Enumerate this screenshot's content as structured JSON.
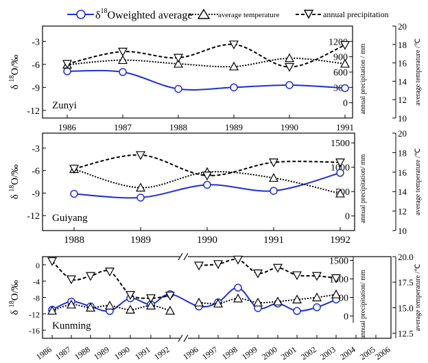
{
  "legend": {
    "delta_label": "δ",
    "delta_sup": "18",
    "delta_rest": "Oweighted average",
    "temp_label": "average temperature",
    "precip_label": "annual precipitation"
  },
  "colors": {
    "delta": "#1f2fd1",
    "temp": "#000000",
    "precip": "#000000"
  },
  "chart_data": [
    {
      "type": "line",
      "station": "Zunyi",
      "x": [
        1986,
        1987,
        1988,
        1989,
        1990,
        1991
      ],
      "x_ticks": [
        "1986",
        "1987",
        "1988",
        "1989",
        "1990",
        "1991"
      ],
      "ylabel_left": "δ 18O/‰",
      "ylabel_right_inner": "annual precipitation / mm",
      "ylabel_right_outer": "average temperature /℃",
      "ylim_left": [
        -13,
        -1
      ],
      "yticks_left": [
        "-3",
        "-6",
        "-9",
        "-12"
      ],
      "ylim_precip": [
        -300,
        1500
      ],
      "yticks_precip": [
        "1200",
        "900",
        "600",
        "300",
        "0"
      ],
      "ylim_temp": [
        10,
        20
      ],
      "yticks_temp": [
        "20",
        "18",
        "16",
        "14",
        "12",
        "10"
      ],
      "series": [
        {
          "name": "δ18O weighted average",
          "axis": "left",
          "values": [
            -6.9,
            -7.0,
            -9.2,
            -9.0,
            -8.7,
            -9.1
          ]
        },
        {
          "name": "average temperature",
          "axis": "temp",
          "values": [
            15.8,
            16.3,
            15.9,
            15.6,
            16.5,
            15.9
          ]
        },
        {
          "name": "annual precipitation",
          "axis": "precip",
          "values": [
            760,
            1000,
            880,
            1140,
            700,
            1130
          ]
        }
      ]
    },
    {
      "type": "line",
      "station": "Guiyang",
      "x": [
        1988,
        1989,
        1990,
        1991,
        1992
      ],
      "x_ticks": [
        "1988",
        "1989",
        "1990",
        "1991",
        "1992"
      ],
      "ylabel_left": "δ 18O/‰",
      "ylabel_right_inner": "annual precipitation/ mm",
      "ylabel_right_outer": "average temperature /℃",
      "ylim_left": [
        -14,
        -1
      ],
      "yticks_left": [
        "-3",
        "-6",
        "-9",
        "-12"
      ],
      "ylim_precip": [
        -300,
        1700
      ],
      "yticks_precip": [
        "1500",
        "1000",
        "500",
        "0"
      ],
      "ylim_temp": [
        10,
        20
      ],
      "yticks_temp": [
        "20",
        "18",
        "16",
        "14",
        "12",
        "10"
      ],
      "series": [
        {
          "name": "δ18O weighted average",
          "axis": "left",
          "values": [
            -9.1,
            -9.6,
            -7.9,
            -8.7,
            -6.3
          ]
        },
        {
          "name": "average temperature",
          "axis": "temp",
          "values": [
            16.3,
            14.4,
            16.0,
            15.4,
            13.8
          ]
        },
        {
          "name": "annual precipitation",
          "axis": "precip",
          "values": [
            970,
            1250,
            830,
            1100,
            1100
          ]
        }
      ]
    },
    {
      "type": "line",
      "station": "Kunming",
      "x": [
        "1986",
        "1987",
        "1988",
        "1989",
        "1990",
        "1991",
        "1992",
        "1996",
        "1997",
        "1998",
        "1999",
        "2000",
        "2001",
        "2002",
        "2003",
        "2004",
        "2005",
        "2006"
      ],
      "x_ticks": [
        "1986",
        "1987",
        "1988",
        "1989",
        "1990",
        "1991",
        "1992",
        "1996",
        "1997",
        "1998",
        "1999",
        "2000",
        "2001",
        "2002",
        "2003",
        "2004",
        "2005",
        "2006"
      ],
      "axis_break_between": [
        "1992",
        "1996"
      ],
      "ylabel_left": "δ 18O/‰",
      "ylabel_right_inner": "annual precipitation/ mm",
      "ylabel_right_outer": "average temperature /℃",
      "ylim_left": [
        -18,
        2
      ],
      "yticks_left": [
        "0",
        "-4",
        "-8",
        "-12",
        "-16"
      ],
      "ylim_precip": [
        -600,
        1600
      ],
      "yticks_precip": [
        "1500",
        "1000",
        "500",
        "0"
      ],
      "ylim_temp": [
        12,
        20
      ],
      "yticks_temp": [
        "20.0",
        "17.5",
        "15.0",
        "12.5"
      ],
      "series": [
        {
          "name": "δ18O weighted average",
          "axis": "left",
          "values": [
            [
              "1986",
              -11.0
            ],
            [
              "1987",
              -9.0
            ],
            [
              "1988",
              -10.2
            ],
            [
              "1989",
              -11.3
            ],
            [
              "1990",
              -8.2
            ],
            [
              "1991",
              -9.7
            ],
            [
              "1992",
              -7.2
            ],
            [
              "1996",
              -10.2
            ],
            [
              "1997",
              -9.2
            ],
            [
              "1998",
              -5.6
            ],
            [
              "1999",
              -10.6
            ],
            [
              "2000",
              -9.5
            ],
            [
              "2001",
              -11.3
            ],
            [
              "2002",
              -10.4
            ],
            [
              "2003",
              -8.5
            ]
          ]
        },
        {
          "name": "average temperature",
          "axis": "temp",
          "values": [
            [
              "1986",
              14.7
            ],
            [
              "1987",
              15.3
            ],
            [
              "1988",
              15.0
            ],
            [
              "1989",
              15.2
            ],
            [
              "1990",
              14.8
            ],
            [
              "1991",
              15.2
            ],
            [
              "1992",
              14.7
            ],
            [
              "1996",
              15.5
            ],
            [
              "1997",
              15.4
            ],
            [
              "1998",
              15.9
            ],
            [
              "1999",
              15.5
            ],
            [
              "2000",
              15.6
            ],
            [
              "2001",
              15.8
            ],
            [
              "2002",
              16.0
            ],
            [
              "2003",
              16.3
            ]
          ]
        },
        {
          "name": "annual precipitation",
          "axis": "precip",
          "values": [
            [
              "1986",
              1480
            ],
            [
              "1987",
              990
            ],
            [
              "1988",
              1080
            ],
            [
              "1989",
              1200
            ],
            [
              "1990",
              570
            ],
            [
              "1991",
              480
            ],
            [
              "1992",
              550
            ],
            [
              "1996",
              1360
            ],
            [
              "1997",
              1400
            ],
            [
              "1998",
              1520
            ],
            [
              "1999",
              1150
            ],
            [
              "2000",
              1300
            ],
            [
              "2001",
              1100
            ],
            [
              "2002",
              1080
            ],
            [
              "2003",
              1020
            ]
          ]
        }
      ]
    }
  ]
}
